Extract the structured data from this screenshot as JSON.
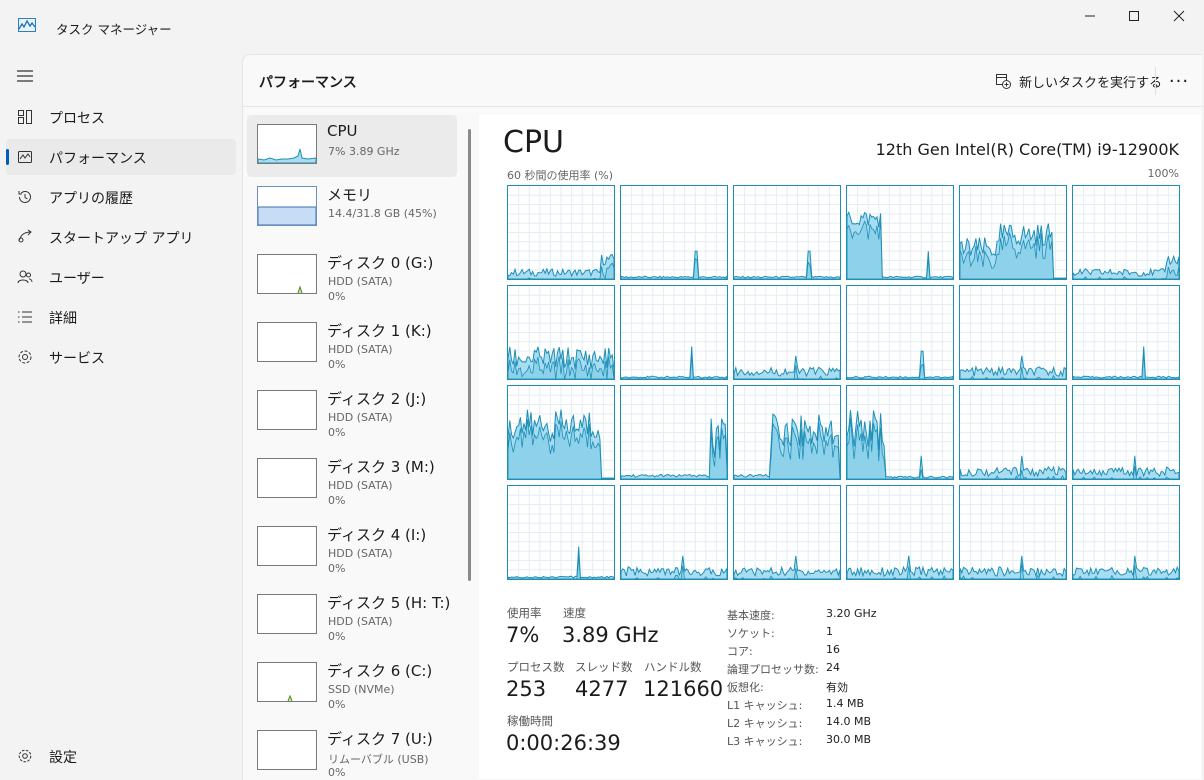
{
  "window": {
    "title": "タスク マネージャー",
    "minimize_icon": "minimize-icon",
    "maximize_icon": "maximize-icon",
    "close_icon": "close-icon"
  },
  "nav": {
    "items": [
      {
        "label": "プロセス",
        "icon": "processes-icon"
      },
      {
        "label": "パフォーマンス",
        "icon": "performance-icon",
        "active": true
      },
      {
        "label": "アプリの履歴",
        "icon": "history-icon"
      },
      {
        "label": "スタートアップ アプリ",
        "icon": "startup-icon"
      },
      {
        "label": "ユーザー",
        "icon": "users-icon"
      },
      {
        "label": "詳細",
        "icon": "details-icon"
      },
      {
        "label": "サービス",
        "icon": "services-icon"
      }
    ],
    "settings_label": "設定"
  },
  "header": {
    "title": "パフォーマンス",
    "run_task_label": "新しいタスクを実行する",
    "more_label": "···"
  },
  "resources": [
    {
      "name": "CPU",
      "line1": "7%  3.89 GHz",
      "line2": ""
    },
    {
      "name": "メモリ",
      "line1": "14.4/31.8 GB (45%)",
      "line2": ""
    },
    {
      "name": "ディスク 0 (G:)",
      "line1": "HDD (SATA)",
      "line2": "0%"
    },
    {
      "name": "ディスク 1 (K:)",
      "line1": "HDD (SATA)",
      "line2": "0%"
    },
    {
      "name": "ディスク 2 (J:)",
      "line1": "HDD (SATA)",
      "line2": "0%"
    },
    {
      "name": "ディスク 3 (M:)",
      "line1": "HDD (SATA)",
      "line2": "0%"
    },
    {
      "name": "ディスク 4 (I:)",
      "line1": "HDD (SATA)",
      "line2": "0%"
    },
    {
      "name": "ディスク 5 (H: T:)",
      "line1": "HDD (SATA)",
      "line2": "0%"
    },
    {
      "name": "ディスク 6 (C:)",
      "line1": "SSD (NVMe)",
      "line2": "0%"
    },
    {
      "name": "ディスク 7 (U:)",
      "line1": "リムーバブル (USB)",
      "line2": "0%"
    }
  ],
  "cpu": {
    "title": "CPU",
    "model": "12th Gen Intel(R) Core(TM) i9-12900K",
    "graph_label": "60 秒間の使用率 (%)",
    "graph_max": "100%",
    "stats": {
      "usage_label": "使用率",
      "usage_value": "7%",
      "speed_label": "速度",
      "speed_value": "3.89 GHz",
      "processes_label": "プロセス数",
      "processes_value": "253",
      "threads_label": "スレッド数",
      "threads_value": "4277",
      "handles_label": "ハンドル数",
      "handles_value": "121660",
      "uptime_label": "稼働時間",
      "uptime_value": "0:00:26:39"
    },
    "specs": [
      {
        "k": "基本速度:",
        "v": "3.20 GHz"
      },
      {
        "k": "ソケット:",
        "v": "1"
      },
      {
        "k": "コア:",
        "v": "16"
      },
      {
        "k": "論理プロセッサ数:",
        "v": "24"
      },
      {
        "k": "仮想化:",
        "v": "有効"
      },
      {
        "k": "L1 キャッシュ:",
        "v": "1.4 MB"
      },
      {
        "k": "L2 キャッシュ:",
        "v": "14.0 MB"
      },
      {
        "k": "L3 キャッシュ:",
        "v": "30.0 MB"
      }
    ]
  },
  "colors": {
    "accent": "#005fb8",
    "cpu_line": "#1d8fb7",
    "cpu_fill": "#a8dcf0",
    "memory_fill": "#c7dcf5",
    "disk_line": "#4d8a1c"
  }
}
